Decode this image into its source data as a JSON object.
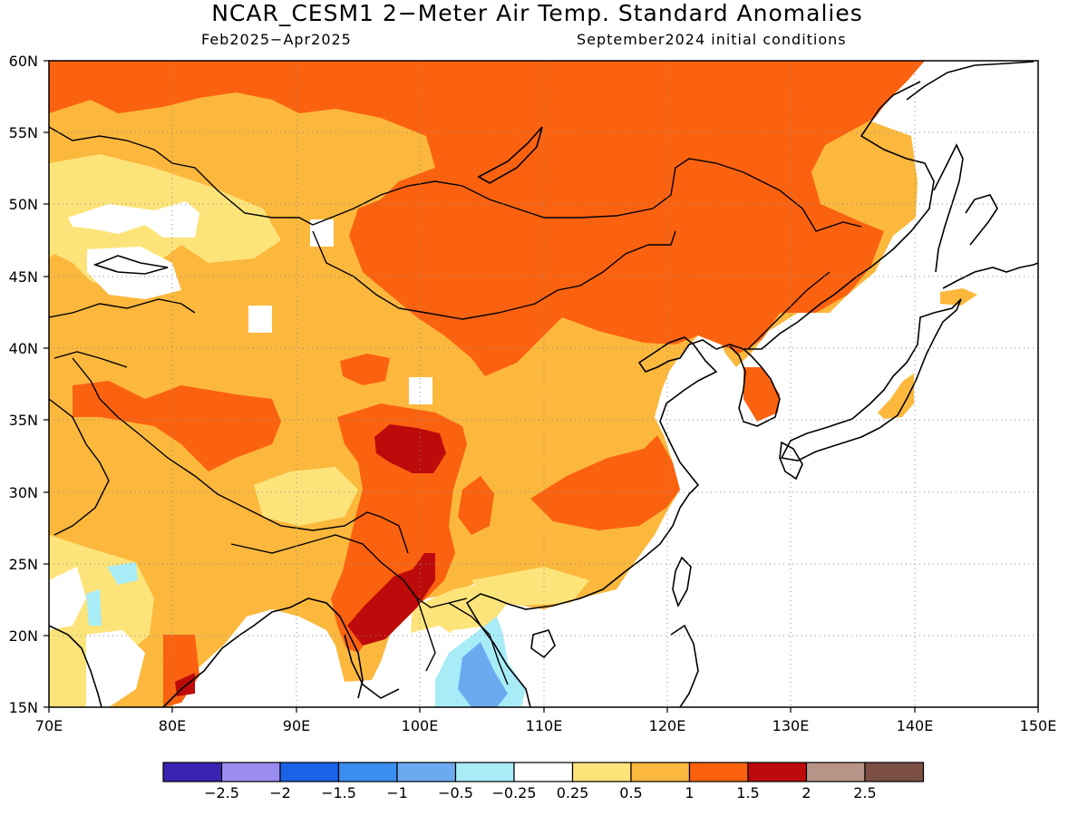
{
  "header": {
    "title": "NCAR_CESM1 2−Meter Air Temp. Standard Anomalies",
    "period": "Feb2025−Apr2025",
    "init": "September2024 initial conditions"
  },
  "map": {
    "lon_labels": [
      "70E",
      "80E",
      "90E",
      "100E",
      "110E",
      "120E",
      "130E",
      "140E",
      "150E"
    ],
    "lat_labels": [
      "60N",
      "55N",
      "50N",
      "45N",
      "40N",
      "35N",
      "30N",
      "25N",
      "20N",
      "15N"
    ],
    "colors": {
      "land_base": "#fbb83d",
      "weak": "#fde47a",
      "strong": "#fb6210",
      "very_strong": "#bd0a0a",
      "neutral": "#ffffff",
      "cool_light": "#a8ecf8",
      "cool_mid": "#6caaf0",
      "coast": "#000000",
      "grid": "#8a8a8a"
    }
  },
  "colorbar": {
    "colors": [
      "#3a23b0",
      "#9a8cf0",
      "#1a62e8",
      "#3b8ef0",
      "#6caaf0",
      "#a8ecf8",
      "#ffffff",
      "#fde47a",
      "#fbb83d",
      "#fb6210",
      "#bd0a0a",
      "#b89488",
      "#7b4f44"
    ],
    "labels": [
      "−2.5",
      "−2",
      "−1.5",
      "−1",
      "−0.5",
      "−0.25",
      "0.25",
      "0.5",
      "1",
      "1.5",
      "2",
      "2.5"
    ]
  }
}
